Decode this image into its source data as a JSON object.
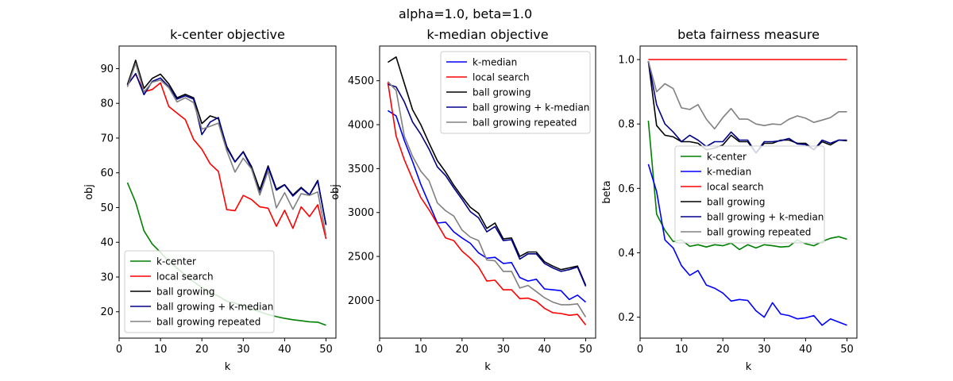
{
  "figure": {
    "suptitle": "alpha=1.0, beta=1.0"
  },
  "chart_data": [
    {
      "type": "line",
      "title": "k-center objective",
      "xlabel": "k",
      "ylabel": "obj",
      "xlim": [
        0,
        52.4
      ],
      "ylim": [
        12.4,
        96.5
      ],
      "xticks": [
        0,
        10,
        20,
        30,
        40,
        50
      ],
      "yticks": [
        20,
        30,
        40,
        50,
        60,
        70,
        80,
        90
      ],
      "legend_position": "lower-left",
      "x": [
        2,
        4,
        6,
        8,
        10,
        12,
        14,
        16,
        18,
        20,
        22,
        24,
        26,
        28,
        30,
        32,
        34,
        36,
        38,
        40,
        42,
        44,
        46,
        48,
        50
      ],
      "series": [
        {
          "name": "k-center",
          "color": "#008000",
          "values": [
            57.2,
            51.5,
            43.3,
            39.5,
            37.1,
            34.5,
            32.6,
            30.5,
            28.6,
            27.0,
            25.6,
            24.5,
            23.0,
            22.5,
            21.6,
            20.7,
            20.0,
            19.2,
            18.6,
            18.1,
            17.7,
            17.4,
            17.1,
            17.0,
            16.1
          ]
        },
        {
          "name": "local search",
          "color": "#ff0000",
          "values": [
            85.4,
            88.4,
            83.3,
            84.0,
            85.9,
            79.1,
            77.2,
            75.3,
            69.6,
            66.8,
            62.6,
            60.4,
            49.4,
            49.1,
            53.5,
            52.3,
            50.2,
            49.8,
            44.6,
            49.2,
            44.0,
            50.2,
            47.4,
            50.8,
            41.0
          ]
        },
        {
          "name": "ball growing",
          "color": "#000000",
          "values": [
            85.4,
            92.4,
            84.3,
            87.2,
            88.4,
            85.6,
            81.6,
            82.6,
            81.6,
            74.2,
            76.4,
            75.6,
            67.6,
            63.2,
            66.1,
            61.8,
            55.1,
            62.0,
            55.3,
            56.6,
            53.6,
            55.8,
            53.7,
            57.8,
            45.0
          ]
        },
        {
          "name": "ball growing + k-median",
          "color": "#00008b",
          "values": [
            85.2,
            88.6,
            82.5,
            86.3,
            87.3,
            84.8,
            81.2,
            82.2,
            81.2,
            71.0,
            74.6,
            75.9,
            67.2,
            63.1,
            66.0,
            61.3,
            54.0,
            61.6,
            55.0,
            56.5,
            53.3,
            55.6,
            53.6,
            57.6,
            45.0
          ]
        },
        {
          "name": "ball growing repeated",
          "color": "#808080",
          "values": [
            84.7,
            91.5,
            83.3,
            86.1,
            86.7,
            84.5,
            80.4,
            81.6,
            80.2,
            72.6,
            73.4,
            74.3,
            66.4,
            60.2,
            64.2,
            61.1,
            53.6,
            60.5,
            49.9,
            54.3,
            49.5,
            54.0,
            53.5,
            54.5,
            42.0
          ]
        }
      ]
    },
    {
      "type": "line",
      "title": "k-median objective",
      "xlabel": "k",
      "ylabel": "obj",
      "xlim": [
        0,
        52.4
      ],
      "ylim": [
        1570,
        4895
      ],
      "xticks": [
        0,
        10,
        20,
        30,
        40,
        50
      ],
      "yticks": [
        2000,
        2500,
        3000,
        3500,
        4000,
        4500
      ],
      "legend_position": "upper-right",
      "x": [
        2,
        4,
        6,
        8,
        10,
        12,
        14,
        16,
        18,
        20,
        22,
        24,
        26,
        28,
        30,
        32,
        34,
        36,
        38,
        40,
        42,
        44,
        46,
        48,
        50
      ],
      "series": [
        {
          "name": "k-median",
          "color": "#0000ff",
          "values": [
            4160,
            4100,
            3820,
            3580,
            3320,
            3100,
            2880,
            2890,
            2780,
            2710,
            2650,
            2540,
            2480,
            2490,
            2420,
            2430,
            2260,
            2220,
            2240,
            2130,
            2120,
            2110,
            2010,
            2060,
            1980
          ]
        },
        {
          "name": "local search",
          "color": "#ff0000",
          "values": [
            4480,
            3870,
            3600,
            3380,
            3170,
            3030,
            2870,
            2710,
            2680,
            2560,
            2480,
            2380,
            2220,
            2230,
            2120,
            2120,
            2020,
            2025,
            1990,
            1910,
            1860,
            1850,
            1830,
            1840,
            1720
          ]
        },
        {
          "name": "ball growing",
          "color": "#000000",
          "values": [
            4710,
            4770,
            4470,
            4170,
            4000,
            3790,
            3590,
            3460,
            3310,
            3180,
            3060,
            2990,
            2820,
            2880,
            2700,
            2710,
            2500,
            2550,
            2550,
            2440,
            2390,
            2350,
            2370,
            2390,
            2170
          ]
        },
        {
          "name": "ball growing + k-median",
          "color": "#00008b",
          "values": [
            4460,
            4430,
            4260,
            4030,
            3890,
            3720,
            3520,
            3420,
            3280,
            3150,
            3010,
            2940,
            2780,
            2840,
            2680,
            2690,
            2470,
            2530,
            2530,
            2420,
            2370,
            2330,
            2350,
            2380,
            2160
          ]
        },
        {
          "name": "ball growing repeated",
          "color": "#808080",
          "values": [
            4490,
            4390,
            3870,
            3640,
            3470,
            3360,
            3110,
            3020,
            2960,
            2800,
            2720,
            2680,
            2460,
            2450,
            2330,
            2330,
            2140,
            2170,
            2100,
            2030,
            1980,
            1950,
            1950,
            1960,
            1810
          ]
        }
      ]
    },
    {
      "type": "line",
      "title": "beta fairness measure",
      "xlabel": "k",
      "ylabel": "beta",
      "xlim": [
        0,
        52.4
      ],
      "ylim": [
        0.135,
        1.042
      ],
      "xticks": [
        0,
        10,
        20,
        30,
        40,
        50
      ],
      "yticks": [
        0.2,
        0.4,
        0.6,
        0.8,
        1.0
      ],
      "legend_position": "center-right",
      "x": [
        2,
        4,
        6,
        8,
        10,
        12,
        14,
        16,
        18,
        20,
        22,
        24,
        26,
        28,
        30,
        32,
        34,
        36,
        38,
        40,
        42,
        44,
        46,
        48,
        50
      ],
      "series": [
        {
          "name": "k-center",
          "color": "#008000",
          "values": [
            0.81,
            0.52,
            0.47,
            0.435,
            0.44,
            0.42,
            0.425,
            0.418,
            0.425,
            0.422,
            0.43,
            0.41,
            0.425,
            0.415,
            0.425,
            0.422,
            0.418,
            0.42,
            0.44,
            0.428,
            0.422,
            0.435,
            0.445,
            0.45,
            0.442
          ]
        },
        {
          "name": "k-median",
          "color": "#0000ff",
          "values": [
            0.675,
            0.59,
            0.44,
            0.415,
            0.36,
            0.33,
            0.345,
            0.3,
            0.29,
            0.275,
            0.25,
            0.255,
            0.252,
            0.22,
            0.2,
            0.245,
            0.21,
            0.205,
            0.195,
            0.198,
            0.205,
            0.175,
            0.195,
            0.185,
            0.175
          ]
        },
        {
          "name": "local search",
          "color": "#ff0000",
          "values": [
            1.0,
            1.0,
            1.0,
            1.0,
            1.0,
            1.0,
            1.0,
            1.0,
            1.0,
            1.0,
            1.0,
            1.0,
            1.0,
            1.0,
            1.0,
            1.0,
            1.0,
            1.0,
            1.0,
            1.0,
            1.0,
            1.0,
            1.0,
            1.0,
            1.0
          ]
        },
        {
          "name": "ball growing",
          "color": "#000000",
          "values": [
            0.995,
            0.795,
            0.765,
            0.76,
            0.745,
            0.745,
            0.74,
            0.72,
            0.725,
            0.735,
            0.765,
            0.745,
            0.745,
            0.71,
            0.74,
            0.74,
            0.75,
            0.75,
            0.74,
            0.74,
            0.72,
            0.745,
            0.735,
            0.75,
            0.748
          ]
        },
        {
          "name": "ball growing + k-median",
          "color": "#00008b",
          "values": [
            0.995,
            0.86,
            0.8,
            0.775,
            0.745,
            0.765,
            0.75,
            0.73,
            0.745,
            0.745,
            0.775,
            0.75,
            0.75,
            0.71,
            0.745,
            0.745,
            0.748,
            0.755,
            0.738,
            0.736,
            0.72,
            0.75,
            0.74,
            0.75,
            0.75
          ]
        },
        {
          "name": "ball growing repeated",
          "color": "#808080",
          "values": [
            0.995,
            0.9,
            0.925,
            0.91,
            0.85,
            0.845,
            0.86,
            0.815,
            0.785,
            0.82,
            0.848,
            0.815,
            0.815,
            0.8,
            0.795,
            0.8,
            0.798,
            0.815,
            0.825,
            0.818,
            0.805,
            0.812,
            0.82,
            0.838,
            0.838
          ]
        }
      ]
    }
  ]
}
